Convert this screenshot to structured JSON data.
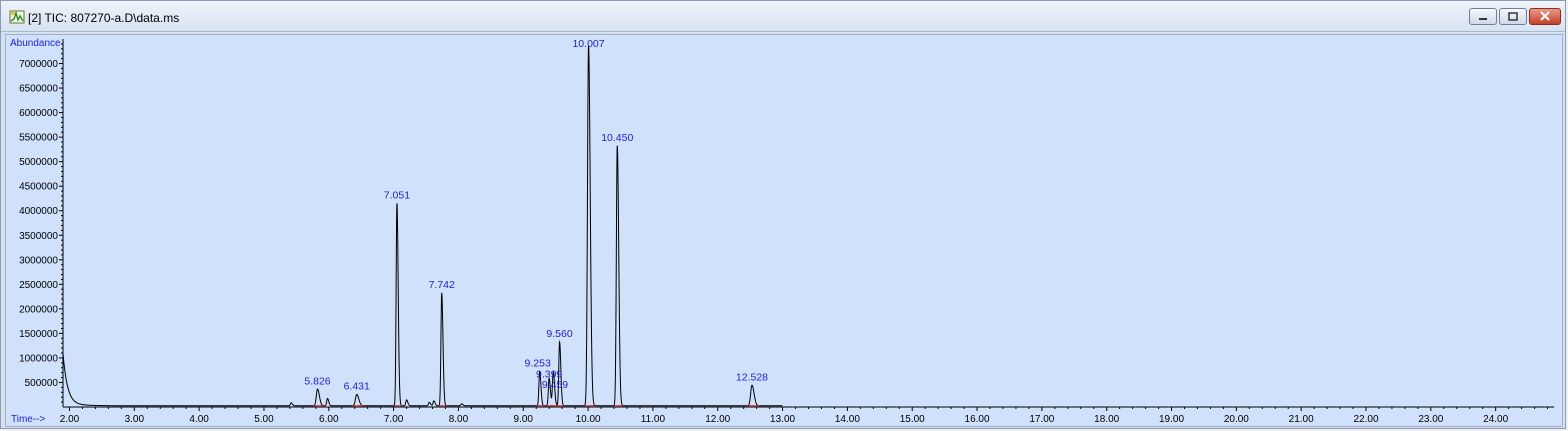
{
  "window": {
    "title": "[2] TIC: 807270-a.D\\data.ms",
    "icon": "chromatogram-icon",
    "buttons": {
      "minimize": "minimize-icon",
      "maximize": "maximize-icon",
      "close": "close-icon"
    }
  },
  "colors": {
    "plot_bg": "#d0e1fb",
    "trace": "#000000",
    "baseline": "#d02020",
    "label": "#1f1fd0"
  },
  "chart_data": {
    "type": "line",
    "ylabel": "Abundance",
    "xlabel": "Time-->",
    "xlim": [
      1.9,
      24.9
    ],
    "ylim": [
      0,
      7500000
    ],
    "x_ticks": [
      "2.00",
      "3.00",
      "4.00",
      "5.00",
      "6.00",
      "7.00",
      "8.00",
      "9.00",
      "10.00",
      "11.00",
      "12.00",
      "13.00",
      "14.00",
      "15.00",
      "16.00",
      "17.00",
      "18.00",
      "19.00",
      "20.00",
      "21.00",
      "22.00",
      "23.00",
      "24.00"
    ],
    "y_ticks": [
      "500000",
      "1000000",
      "1500000",
      "2000000",
      "2500000",
      "3000000",
      "3500000",
      "4000000",
      "4500000",
      "5000000",
      "5500000",
      "6000000",
      "6500000",
      "7000000"
    ],
    "peaks": [
      {
        "rt": 5.826,
        "label": "5.826",
        "height": 340000,
        "width": 0.018
      },
      {
        "rt": 6.431,
        "label": "6.431",
        "height": 230000,
        "width": 0.02
      },
      {
        "rt": 7.051,
        "label": "7.051",
        "height": 4130000,
        "width": 0.012
      },
      {
        "rt": 7.742,
        "label": "7.742",
        "height": 2300000,
        "width": 0.012
      },
      {
        "rt": 9.253,
        "label": "9.253",
        "height": 700000,
        "width": 0.012
      },
      {
        "rt": 9.399,
        "label": "9.399",
        "height": 560000,
        "width": 0.012
      },
      {
        "rt": 9.459,
        "label": "9.459",
        "height": 470000,
        "width": 0.012
      },
      {
        "rt": 9.56,
        "label": "9.560",
        "height": 1300000,
        "width": 0.012
      },
      {
        "rt": 10.007,
        "label": "10.007",
        "height": 7350000,
        "width": 0.016
      },
      {
        "rt": 10.45,
        "label": "10.450",
        "height": 5300000,
        "width": 0.014
      },
      {
        "rt": 12.528,
        "label": "12.528",
        "height": 420000,
        "width": 0.02
      }
    ],
    "minor_peaks": [
      {
        "rt": 5.42,
        "height": 60000
      },
      {
        "rt": 5.98,
        "height": 150000
      },
      {
        "rt": 7.2,
        "height": 120000
      },
      {
        "rt": 7.55,
        "height": 70000
      },
      {
        "rt": 7.62,
        "height": 100000
      },
      {
        "rt": 8.05,
        "height": 40000
      },
      {
        "rt": 9.47,
        "height": 260000
      }
    ]
  }
}
